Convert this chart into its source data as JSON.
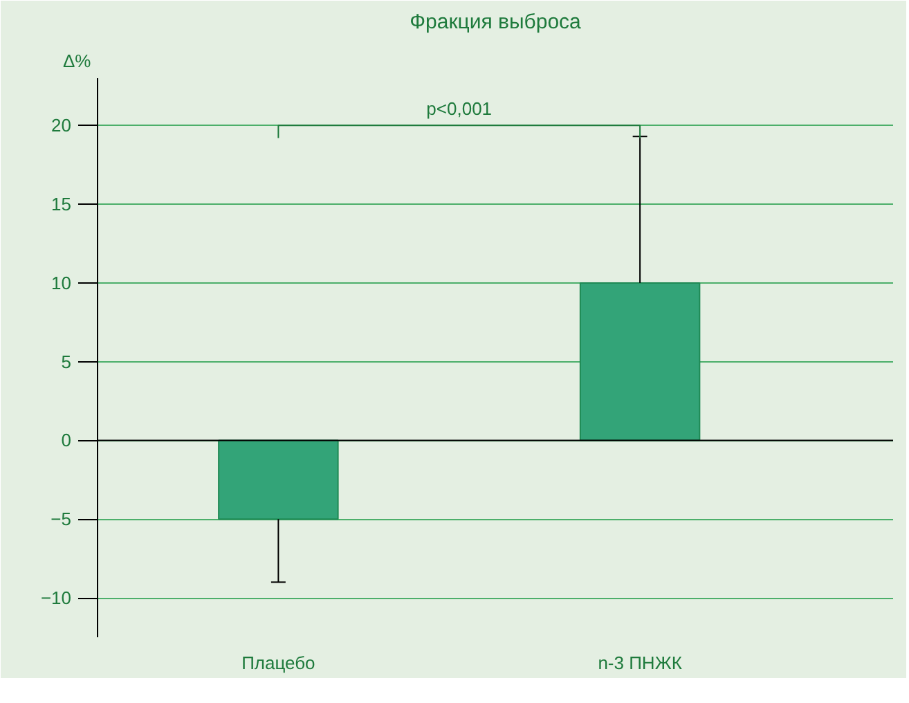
{
  "chart_data": {
    "type": "bar",
    "title": "Фракция выброса",
    "ylabel": "Δ%",
    "categories": [
      "Плацебо",
      "n-3 ПНЖК"
    ],
    "values": [
      -5,
      10
    ],
    "color": "#33a478",
    "errors": [
      [
        -9,
        -5
      ],
      [
        10,
        19.3
      ]
    ],
    "ylim": [
      -12.5,
      23
    ],
    "yticks": [
      -10,
      -5,
      0,
      5,
      10,
      15,
      20
    ],
    "grid": "y",
    "annotations": [
      "p<0,001"
    ]
  }
}
